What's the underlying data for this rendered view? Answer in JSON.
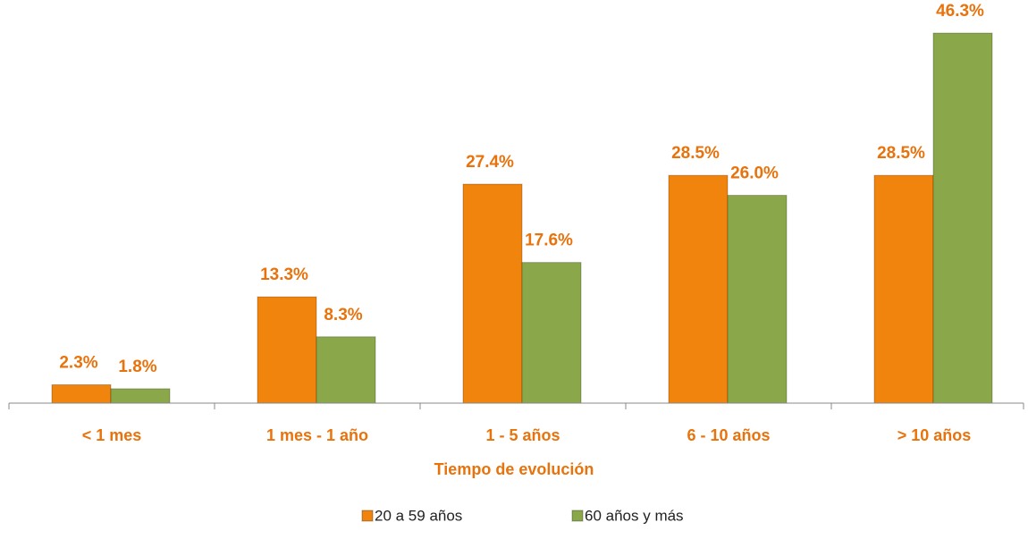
{
  "chart_data": {
    "type": "bar",
    "categories": [
      "< 1 mes",
      "1 mes - 1 año",
      "1 - 5 años",
      "6 - 10 años",
      "> 10 años"
    ],
    "x_label": "Tiempo de evolución",
    "series": [
      {
        "name": "20 a 59 años",
        "color": "#f0840c",
        "values": [
          2.3,
          13.3,
          27.4,
          28.5,
          28.5
        ],
        "value_labels": [
          "2.3%",
          "13.3%",
          "27.4%",
          "28.5%",
          "28.5%"
        ]
      },
      {
        "name": "60 años y más",
        "color": "#8aa84a",
        "values": [
          1.8,
          8.3,
          17.6,
          26.0,
          46.3
        ],
        "value_labels": [
          "1.8%",
          "8.3%",
          "17.6%",
          "26.0%",
          "46.3%"
        ]
      }
    ]
  }
}
